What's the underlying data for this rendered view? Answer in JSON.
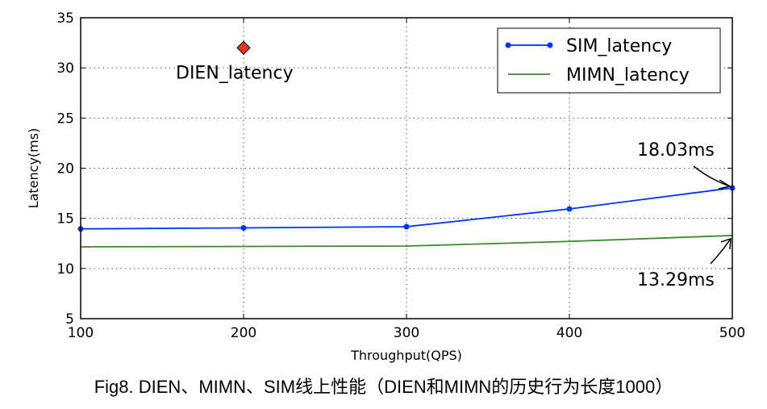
{
  "chart_data": {
    "type": "line",
    "title": "",
    "xlabel": "Throughput(QPS)",
    "ylabel": "Latency(ms)",
    "xlim": [
      100,
      500
    ],
    "ylim": [
      5,
      35
    ],
    "xticks": [
      100,
      200,
      300,
      400,
      500
    ],
    "yticks": [
      5,
      10,
      15,
      20,
      25,
      30,
      35
    ],
    "grid": true,
    "legend_position": "top-right",
    "series": [
      {
        "name": "SIM_latency",
        "color": "#0033ff",
        "marker": "dot",
        "x": [
          100,
          200,
          300,
          400,
          500
        ],
        "y": [
          13.95,
          14.05,
          14.17,
          15.94,
          18.03
        ]
      },
      {
        "name": "MIMN_latency",
        "color": "#3a8a2a",
        "marker": "none",
        "x": [
          100,
          200,
          300,
          400,
          500
        ],
        "y": [
          12.16,
          12.2,
          12.24,
          12.7,
          13.29
        ]
      }
    ],
    "points": [
      {
        "name": "DIEN_latency",
        "x": 200,
        "y": 32,
        "color": "#e8341c",
        "marker": "diamond"
      }
    ],
    "annotations": [
      {
        "text": "18.03ms",
        "x": 500,
        "y": 18.03
      },
      {
        "text": "13.29ms",
        "x": 500,
        "y": 13.29
      }
    ]
  },
  "caption": "Fig8. DIEN、MIMN、SIM线上性能（DIEN和MIMN的历史行为长度1000）"
}
